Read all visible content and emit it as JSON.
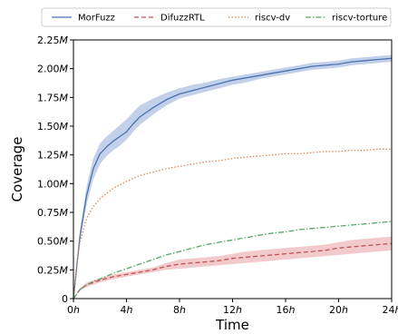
{
  "chart_data": {
    "type": "line",
    "title": "",
    "xlabel": "Time",
    "ylabel": "Coverage",
    "xlim": [
      0,
      24
    ],
    "ylim": [
      0,
      2.25
    ],
    "x_ticks": [
      {
        "value": 0,
        "num": "0",
        "unit": "h"
      },
      {
        "value": 4,
        "num": "4",
        "unit": "h"
      },
      {
        "value": 8,
        "num": "8",
        "unit": "h"
      },
      {
        "value": 12,
        "num": "12",
        "unit": "h"
      },
      {
        "value": 16,
        "num": "16",
        "unit": "h"
      },
      {
        "value": 20,
        "num": "20",
        "unit": "h"
      },
      {
        "value": 24,
        "num": "24",
        "unit": "h"
      }
    ],
    "y_ticks": [
      {
        "value": 0,
        "num": "0",
        "unit": ""
      },
      {
        "value": 0.25,
        "num": "0.25",
        "unit": "M"
      },
      {
        "value": 0.5,
        "num": "0.50",
        "unit": "M"
      },
      {
        "value": 0.75,
        "num": "0.75",
        "unit": "M"
      },
      {
        "value": 1.0,
        "num": "1.00",
        "unit": "M"
      },
      {
        "value": 1.25,
        "num": "1.25",
        "unit": "M"
      },
      {
        "value": 1.5,
        "num": "1.50",
        "unit": "M"
      },
      {
        "value": 1.75,
        "num": "1.75",
        "unit": "M"
      },
      {
        "value": 2.0,
        "num": "2.00",
        "unit": "M"
      },
      {
        "value": 2.25,
        "num": "2.25",
        "unit": "M"
      }
    ],
    "grid": false,
    "legend_position": "top",
    "series": [
      {
        "name": "MorFuzz",
        "color": "#4c72b0",
        "dash": "solid",
        "band_color": "#aec0e3",
        "x": [
          0,
          0.5,
          1,
          1.5,
          2,
          2.5,
          3,
          3.5,
          4,
          4.5,
          5,
          6,
          7,
          8,
          9,
          10,
          11,
          12,
          13,
          14,
          15,
          16,
          17,
          18,
          19,
          20,
          21,
          22,
          23,
          24
        ],
        "y": [
          0,
          0.55,
          0.9,
          1.13,
          1.26,
          1.32,
          1.37,
          1.41,
          1.45,
          1.52,
          1.58,
          1.66,
          1.73,
          1.78,
          1.81,
          1.84,
          1.87,
          1.9,
          1.92,
          1.94,
          1.96,
          1.98,
          2.0,
          2.02,
          2.03,
          2.04,
          2.06,
          2.07,
          2.08,
          2.09
        ],
        "lower": [
          0,
          0.5,
          0.82,
          1.04,
          1.17,
          1.24,
          1.29,
          1.33,
          1.38,
          1.45,
          1.51,
          1.6,
          1.68,
          1.74,
          1.77,
          1.8,
          1.83,
          1.86,
          1.88,
          1.91,
          1.93,
          1.95,
          1.97,
          1.99,
          2.0,
          2.01,
          2.03,
          2.04,
          2.05,
          2.06
        ],
        "upper": [
          0,
          0.6,
          0.98,
          1.22,
          1.35,
          1.41,
          1.46,
          1.51,
          1.56,
          1.62,
          1.68,
          1.74,
          1.79,
          1.83,
          1.86,
          1.88,
          1.91,
          1.93,
          1.95,
          1.97,
          1.99,
          2.01,
          2.03,
          2.05,
          2.06,
          2.07,
          2.09,
          2.1,
          2.11,
          2.12
        ]
      },
      {
        "name": "DifuzzRTL",
        "color": "#c44e52",
        "dash": "5,3",
        "band_color": "#eeb8ba",
        "x": [
          0,
          0.5,
          1,
          1.5,
          2,
          3,
          4,
          5,
          6,
          7,
          8,
          9,
          10,
          11,
          12,
          13,
          14,
          15,
          16,
          17,
          18,
          19,
          20,
          21,
          22,
          23,
          24
        ],
        "y": [
          0,
          0.08,
          0.12,
          0.14,
          0.16,
          0.19,
          0.21,
          0.23,
          0.25,
          0.28,
          0.3,
          0.31,
          0.32,
          0.33,
          0.35,
          0.36,
          0.37,
          0.38,
          0.39,
          0.4,
          0.41,
          0.42,
          0.44,
          0.45,
          0.46,
          0.47,
          0.48
        ],
        "lower": [
          0,
          0.07,
          0.1,
          0.12,
          0.14,
          0.17,
          0.19,
          0.21,
          0.23,
          0.25,
          0.26,
          0.27,
          0.28,
          0.29,
          0.3,
          0.31,
          0.32,
          0.33,
          0.34,
          0.35,
          0.36,
          0.37,
          0.38,
          0.39,
          0.4,
          0.41,
          0.42
        ],
        "upper": [
          0,
          0.09,
          0.14,
          0.16,
          0.18,
          0.21,
          0.23,
          0.25,
          0.27,
          0.31,
          0.34,
          0.35,
          0.36,
          0.37,
          0.39,
          0.41,
          0.42,
          0.43,
          0.44,
          0.45,
          0.46,
          0.47,
          0.49,
          0.51,
          0.52,
          0.53,
          0.54
        ]
      },
      {
        "name": "riscv-dv",
        "color": "#dd8452",
        "dash": "1.5,2",
        "x": [
          0,
          0.25,
          0.5,
          1,
          1.5,
          2,
          3,
          4,
          5,
          6,
          7,
          8,
          9,
          10,
          11,
          12,
          13,
          14,
          15,
          16,
          17,
          18,
          19,
          20,
          21,
          22,
          23,
          24
        ],
        "y": [
          0,
          0.3,
          0.5,
          0.7,
          0.8,
          0.87,
          0.96,
          1.02,
          1.07,
          1.1,
          1.13,
          1.15,
          1.17,
          1.19,
          1.2,
          1.22,
          1.23,
          1.24,
          1.25,
          1.26,
          1.26,
          1.27,
          1.28,
          1.28,
          1.29,
          1.29,
          1.3,
          1.3
        ]
      },
      {
        "name": "riscv-torture",
        "color": "#55a868",
        "dash": "6,2,1.5,2",
        "x": [
          0,
          0.5,
          1,
          1.5,
          2,
          3,
          4,
          5,
          6,
          7,
          8,
          9,
          10,
          11,
          12,
          13,
          14,
          15,
          16,
          17,
          18,
          19,
          20,
          21,
          22,
          23,
          24
        ],
        "y": [
          0,
          0.08,
          0.12,
          0.15,
          0.17,
          0.22,
          0.26,
          0.3,
          0.34,
          0.38,
          0.41,
          0.44,
          0.47,
          0.49,
          0.51,
          0.53,
          0.55,
          0.57,
          0.58,
          0.6,
          0.61,
          0.62,
          0.63,
          0.64,
          0.65,
          0.66,
          0.67
        ]
      }
    ]
  }
}
